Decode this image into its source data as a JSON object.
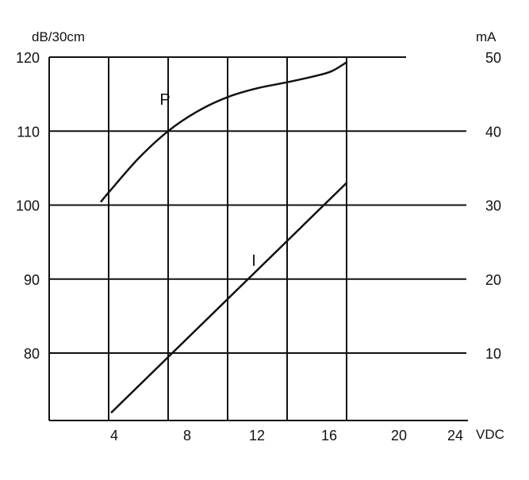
{
  "chart_data": {
    "type": "line",
    "title": "",
    "x": {
      "label": "VDC",
      "ticks": [
        4,
        8,
        12,
        16,
        20,
        24
      ],
      "range": [
        0,
        24
      ]
    },
    "y_left": {
      "label": "dB/30cm",
      "ticks": [
        80,
        90,
        100,
        110,
        120
      ],
      "range": [
        71,
        120
      ]
    },
    "y_right": {
      "label": "mA",
      "ticks": [
        10,
        20,
        30,
        40,
        50
      ],
      "range": [
        0,
        50
      ]
    },
    "grid": true,
    "series": [
      {
        "name": "P",
        "axis": "left",
        "points": [
          [
            3.5,
            100.5
          ],
          [
            4,
            101.7
          ],
          [
            6,
            106.3
          ],
          [
            8,
            110
          ],
          [
            10,
            112.7
          ],
          [
            12,
            114.6
          ],
          [
            14,
            115.8
          ],
          [
            16,
            116.6
          ],
          [
            18,
            117.5
          ],
          [
            19,
            118.1
          ],
          [
            20,
            119.3
          ]
        ]
      },
      {
        "name": "I",
        "axis": "right",
        "points": [
          [
            4.2,
            2
          ],
          [
            20,
            33
          ]
        ]
      }
    ]
  }
}
